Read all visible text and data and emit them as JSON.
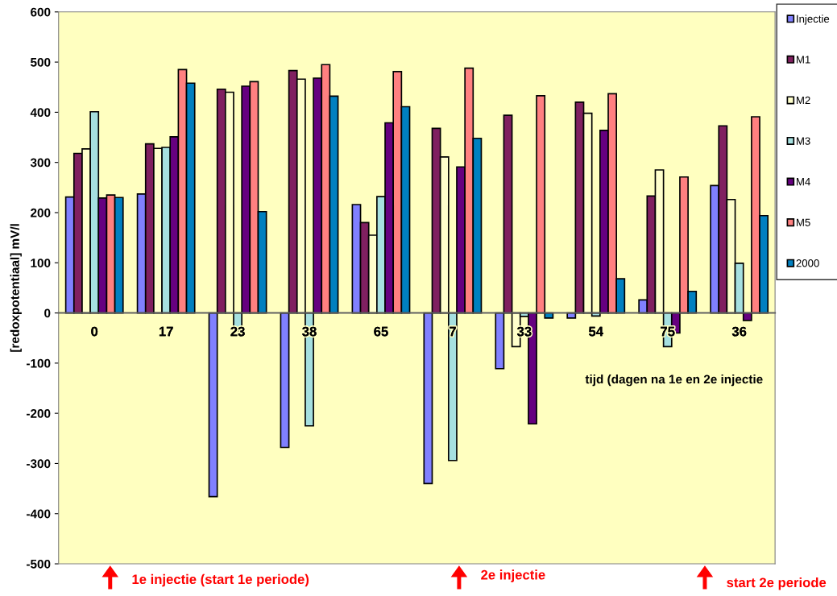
{
  "chart_data": {
    "type": "bar",
    "xlabel": "tijd (dagen na 1e en 2e injectie",
    "ylabel": "[redoxpotentiaal] mV/l",
    "categories": [
      "0",
      "17",
      "23",
      "38",
      "65",
      "7",
      "33",
      "54",
      "75",
      "36"
    ],
    "series": [
      {
        "name": "Injectie",
        "color": "#8080ff",
        "values": [
          231,
          237,
          -366,
          -268,
          216,
          -340,
          -111,
          -10,
          26,
          254
        ]
      },
      {
        "name": "M1",
        "color": "#802060",
        "values": [
          318,
          337,
          446,
          483,
          180,
          368,
          394,
          420,
          233,
          373
        ]
      },
      {
        "name": "M2",
        "color": "#ffffcc",
        "values": [
          327,
          328,
          440,
          466,
          155,
          311,
          -67,
          398,
          285,
          226
        ]
      },
      {
        "name": "M3",
        "color": "#a6e0e0",
        "values": [
          401,
          330,
          -35,
          -225,
          232,
          -294,
          -7,
          -6,
          -67,
          99
        ]
      },
      {
        "name": "M4",
        "color": "#660080",
        "values": [
          229,
          351,
          452,
          468,
          379,
          291,
          -221,
          364,
          -40,
          -15
        ]
      },
      {
        "name": "M5",
        "color": "#ff8080",
        "values": [
          235,
          485,
          461,
          495,
          481,
          488,
          433,
          437,
          271,
          391
        ]
      },
      {
        "name": "2000",
        "color": "#0080c0",
        "values": [
          230,
          458,
          202,
          432,
          411,
          348,
          -10,
          68,
          43,
          194
        ]
      }
    ],
    "ylim": [
      -500,
      600
    ],
    "yticks": [
      -500,
      -400,
      -300,
      -200,
      -100,
      0,
      100,
      200,
      300,
      400,
      500,
      600
    ],
    "grid": false,
    "legend": "top right",
    "annotations": [
      "1e injectie (start 1e periode)",
      "2e injectie",
      "start 2e periode"
    ]
  }
}
